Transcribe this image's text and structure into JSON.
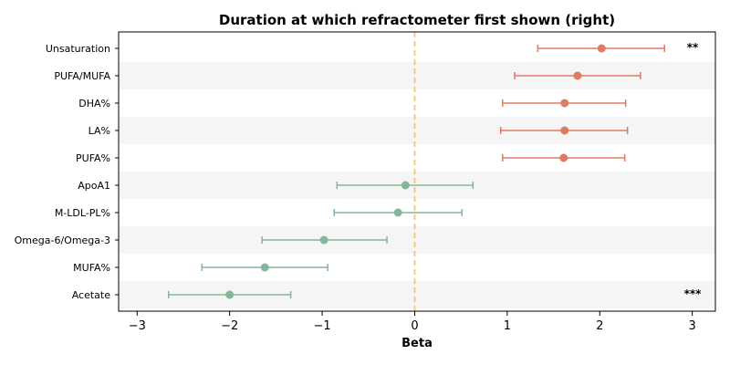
{
  "chart_data": {
    "type": "forest",
    "title": "Duration at which refractometer first shown (right)",
    "xlabel": "Beta",
    "xlim": [
      -3.2,
      3.25
    ],
    "xticks": [
      -3,
      -2,
      -1,
      0,
      1,
      2,
      3
    ],
    "xtick_labels": [
      "−3",
      "−2",
      "−1",
      "0",
      "1",
      "2",
      "3"
    ],
    "reference_line": 0,
    "colors": {
      "positive": "#e07b63",
      "negative": "#86b59b",
      "reference": "#f0c67a",
      "band": "#f5f5f5"
    },
    "rows": [
      {
        "label": "Unsaturation",
        "beta": 2.02,
        "lo": 1.33,
        "hi": 2.7,
        "sig": "**"
      },
      {
        "label": "PUFA/MUFA",
        "beta": 1.76,
        "lo": 1.08,
        "hi": 2.44,
        "sig": ""
      },
      {
        "label": "DHA%",
        "beta": 1.62,
        "lo": 0.95,
        "hi": 2.28,
        "sig": ""
      },
      {
        "label": "LA%",
        "beta": 1.62,
        "lo": 0.93,
        "hi": 2.3,
        "sig": ""
      },
      {
        "label": "PUFA%",
        "beta": 1.61,
        "lo": 0.95,
        "hi": 2.27,
        "sig": ""
      },
      {
        "label": "ApoA1",
        "beta": -0.1,
        "lo": -0.84,
        "hi": 0.63,
        "sig": ""
      },
      {
        "label": "M-LDL-PL%",
        "beta": -0.18,
        "lo": -0.87,
        "hi": 0.51,
        "sig": ""
      },
      {
        "label": "Omega-6/Omega-3",
        "beta": -0.98,
        "lo": -1.65,
        "hi": -0.3,
        "sig": ""
      },
      {
        "label": "MUFA%",
        "beta": -1.62,
        "lo": -2.3,
        "hi": -0.94,
        "sig": ""
      },
      {
        "label": "Acetate",
        "beta": -2.0,
        "lo": -2.66,
        "hi": -1.34,
        "sig": "***"
      }
    ]
  }
}
